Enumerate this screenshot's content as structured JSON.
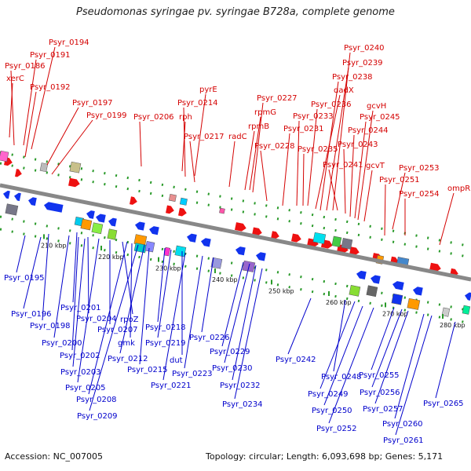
{
  "title": "Pseudomonas syringae pv. syringae B728a, complete genome",
  "accession": "Accession: NC_007005",
  "topology": "Topology: circular; Length: 6,093,698 bp; Genes: 5,171",
  "colors": {
    "top_label": "#d40000",
    "bottom_label": "#0000cc",
    "backbone": "#888888"
  },
  "ticks": [
    "210 kbp",
    "220 kbp",
    "230 kbp",
    "240 kbp",
    "250 kbp",
    "260 kbp",
    "270 kbp",
    "280 kbp"
  ],
  "top_genes": [
    "xerC",
    "Psyr_0186",
    "Psyr_0191",
    "Psyr_0192",
    "Psyr_0194",
    "Psyr_0197",
    "Psyr_0199",
    "Psyr_0206",
    "rph",
    "Psyr_0214",
    "pyrE",
    "Psyr_0217",
    "radC",
    "rpmB",
    "rpmG",
    "Psyr_0227",
    "Psyr_0228",
    "Psyr_0231",
    "Psyr_0233",
    "Psyr_0235",
    "Psyr_0236",
    "dadX",
    "Psyr_0238",
    "Psyr_0239",
    "Psyr_0240",
    "Psyr_0241",
    "Psyr_0243",
    "Psyr_0244",
    "Psyr_0245",
    "gcvH",
    "gcvT",
    "Psyr_0251",
    "Psyr_0253",
    "Psyr_0254",
    "ompR"
  ],
  "bottom_genes": [
    "Psyr_0195",
    "Psyr_0196",
    "Psyr_0198",
    "Psyr_0200",
    "Psyr_0201",
    "Psyr_0202",
    "Psyr_0203",
    "Psyr_0204",
    "Psyr_0205",
    "Psyr_0207",
    "rpoZ",
    "Psyr_0208",
    "gmk",
    "Psyr_0209",
    "Psyr_0212",
    "Psyr_0215",
    "Psyr_0218",
    "Psyr_0219",
    "dut",
    "Psyr_0221",
    "Psyr_0223",
    "Psyr_0226",
    "Psyr_0229",
    "Psyr_0230",
    "Psyr_0232",
    "Psyr_0234",
    "Psyr_0242",
    "Psyr_0248",
    "Psyr_0249",
    "Psyr_0250",
    "Psyr_0252",
    "Psyr_0255",
    "Psyr_0256",
    "Psyr_0257",
    "Psyr_0260",
    "Psyr_0261",
    "Psyr_0265"
  ]
}
